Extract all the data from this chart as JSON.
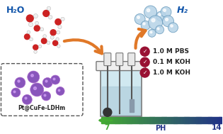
{
  "bg_color": "#ffffff",
  "h2o_label": "H₂O",
  "h2_label": "H₂",
  "ph_label": "PH",
  "ph_left": "7",
  "ph_right": "14",
  "checklist": [
    "1.0 M PBS",
    "0.1 M KOH",
    "1.0 M KOH"
  ],
  "ldh_label": "Pt@CuFe-LDHm",
  "water_red": "#cc2222",
  "h2_blue_light": "#b8d4e8",
  "h2_blue_mid": "#6699bb",
  "arrow_color": "#e07828",
  "ph_green": "#44aa33",
  "ph_blue_dark": "#223388",
  "check_color": "#991133",
  "ldh_purple": "#8855bb",
  "ldh_purple2": "#aa66cc",
  "cell_top_color": "#e0e0e0",
  "cell_body_color": "#d0e8f0",
  "cell_line_color": "#777777",
  "text_blue": "#1155aa",
  "text_dark": "#222222"
}
